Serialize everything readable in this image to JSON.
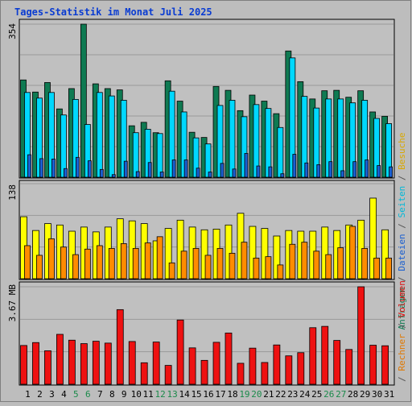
{
  "title": "Tages-Statistik im Monat Juli 2025",
  "colors": {
    "background": "#bdbdbd",
    "title": "#0a3cd2",
    "anfragen": "#0f7a52",
    "dateien": "#00d8ff",
    "seiten": "#1a5fd0",
    "besuche": "#ffff00",
    "rechner": "#ff8c00",
    "volumen": "#ee1111",
    "weekend_label": "#1a8a4a"
  },
  "legend": {
    "upper": [
      {
        "text": "Anfragen",
        "color": "#0f7a52"
      },
      {
        "text": "/",
        "color": "#555555"
      },
      {
        "text": "Dateien",
        "color": "#1a5fd0"
      },
      {
        "text": "/",
        "color": "#555555"
      },
      {
        "text": "Seiten",
        "color": "#00b8d8"
      },
      {
        "text": "/",
        "color": "#555555"
      },
      {
        "text": "Besuche",
        "color": "#d9a800"
      }
    ],
    "lower": [
      {
        "text": "/",
        "color": "#555555"
      },
      {
        "text": "Rechner",
        "color": "#e07800"
      },
      {
        "text": "/",
        "color": "#555555"
      },
      {
        "text": "Volumen",
        "color": "#dd1111"
      }
    ]
  },
  "chart_data": [
    {
      "type": "bar",
      "panel": "top",
      "ymax": 354,
      "ymax_label": "354",
      "x_labels": [
        "1",
        "2",
        "3",
        "4",
        "5",
        "6",
        "7",
        "8",
        "9",
        "10",
        "11",
        "12",
        "13",
        "14",
        "15",
        "16",
        "17",
        "18",
        "19",
        "20",
        "21",
        "22",
        "23",
        "24",
        "25",
        "26",
        "27",
        "28",
        "29",
        "30",
        "31"
      ],
      "weekend_days": [
        5,
        6,
        12,
        13,
        19,
        20,
        26,
        27
      ],
      "series": [
        {
          "name": "Anfragen",
          "values": [
            225,
            197,
            219,
            158,
            205,
            354,
            216,
            205,
            202,
            119,
            127,
            103,
            223,
            176,
            104,
            92,
            210,
            201,
            154,
            190,
            176,
            147,
            292,
            221,
            181,
            200,
            201,
            185,
            200,
            151,
            141
          ]
        },
        {
          "name": "Dateien",
          "values": [
            196,
            183,
            196,
            144,
            180,
            122,
            196,
            188,
            178,
            103,
            111,
            101,
            199,
            151,
            91,
            77,
            166,
            178,
            140,
            168,
            159,
            115,
            276,
            187,
            160,
            181,
            181,
            172,
            178,
            136,
            124
          ]
        },
        {
          "name": "Seiten",
          "values": [
            52,
            43,
            42,
            20,
            46,
            38,
            18,
            6,
            37,
            13,
            34,
            12,
            40,
            40,
            21,
            12,
            32,
            19,
            55,
            26,
            24,
            8,
            53,
            33,
            29,
            36,
            15,
            36,
            40,
            27,
            24
          ]
        }
      ]
    },
    {
      "type": "bar",
      "panel": "middle",
      "ymax": 138,
      "ymax_label": "138",
      "series": [
        {
          "name": "Besuche",
          "values": [
            90,
            70,
            80,
            78,
            69,
            75,
            68,
            75,
            87,
            84,
            80,
            55,
            73,
            85,
            75,
            71,
            72,
            78,
            95,
            76,
            73,
            62,
            70,
            69,
            69,
            75,
            70,
            78,
            85,
            117,
            71
          ]
        },
        {
          "name": "Rechner",
          "values": [
            48,
            34,
            58,
            46,
            35,
            43,
            48,
            44,
            51,
            44,
            52,
            61,
            23,
            40,
            44,
            34,
            44,
            37,
            53,
            30,
            32,
            20,
            50,
            53,
            40,
            35,
            45,
            76,
            44,
            30,
            30
          ]
        }
      ]
    },
    {
      "type": "bar",
      "panel": "bottom",
      "ymax": 3.67,
      "ymax_label": "3.67 MB",
      "series": [
        {
          "name": "Volumen",
          "values": [
            1.46,
            1.57,
            1.26,
            1.88,
            1.66,
            1.53,
            1.62,
            1.55,
            2.81,
            1.61,
            0.81,
            1.59,
            0.71,
            2.42,
            1.37,
            0.9,
            1.58,
            1.93,
            0.79,
            1.36,
            0.82,
            1.48,
            1.07,
            1.19,
            2.13,
            2.18,
            1.65,
            1.31,
            3.67,
            1.47,
            1.45
          ]
        }
      ]
    }
  ]
}
